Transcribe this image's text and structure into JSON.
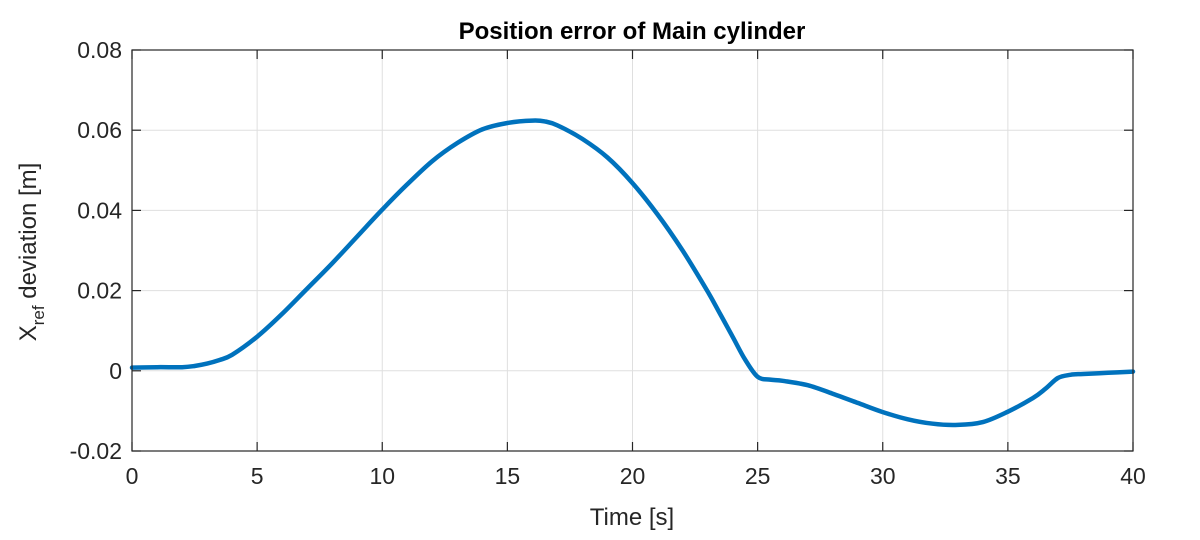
{
  "chart_data": {
    "type": "line",
    "title": "Position error of Main cylinder",
    "xlabel": "Time [s]",
    "ylabel": {
      "main": "X",
      "subscript": "ref",
      "rest": " deviation [m]"
    },
    "xlim": [
      0,
      40
    ],
    "ylim": [
      -0.02,
      0.08
    ],
    "xticks": [
      0,
      5,
      10,
      15,
      20,
      25,
      30,
      35,
      40
    ],
    "xtick_labels": [
      "0",
      "5",
      "10",
      "15",
      "20",
      "25",
      "30",
      "35",
      "40"
    ],
    "yticks": [
      -0.02,
      0,
      0.02,
      0.04,
      0.06,
      0.08
    ],
    "ytick_labels": [
      "-0.02",
      "0",
      "0.02",
      "0.04",
      "0.06",
      "0.08"
    ],
    "grid": true,
    "line_color": "#0072BD",
    "series": [
      {
        "x": [
          0,
          1,
          2,
          2.5,
          3,
          3.5,
          4,
          5,
          6,
          7,
          8,
          9,
          10,
          11,
          12,
          13,
          14,
          15,
          16,
          16.5,
          17,
          18,
          19,
          20,
          21,
          22,
          23,
          23.5,
          24,
          24.5,
          25,
          25.5,
          26,
          27,
          28,
          29,
          30,
          31,
          32,
          33,
          34,
          35,
          36,
          36.5,
          37,
          37.5,
          38,
          39,
          40
        ],
        "y": [
          0.0008,
          0.0009,
          0.0009,
          0.0012,
          0.0018,
          0.0027,
          0.004,
          0.0085,
          0.0142,
          0.0205,
          0.0268,
          0.0335,
          0.0402,
          0.0465,
          0.0523,
          0.0568,
          0.0602,
          0.0618,
          0.0624,
          0.0622,
          0.0612,
          0.0578,
          0.0532,
          0.0468,
          0.039,
          0.03,
          0.0198,
          0.0142,
          0.0085,
          0.0028,
          -0.0015,
          -0.0022,
          -0.0025,
          -0.0036,
          -0.0057,
          -0.008,
          -0.0103,
          -0.0121,
          -0.0132,
          -0.0135,
          -0.0128,
          -0.0102,
          -0.0068,
          -0.0045,
          -0.0018,
          -0.001,
          -0.0008,
          -0.0005,
          -0.0002
        ]
      }
    ]
  }
}
